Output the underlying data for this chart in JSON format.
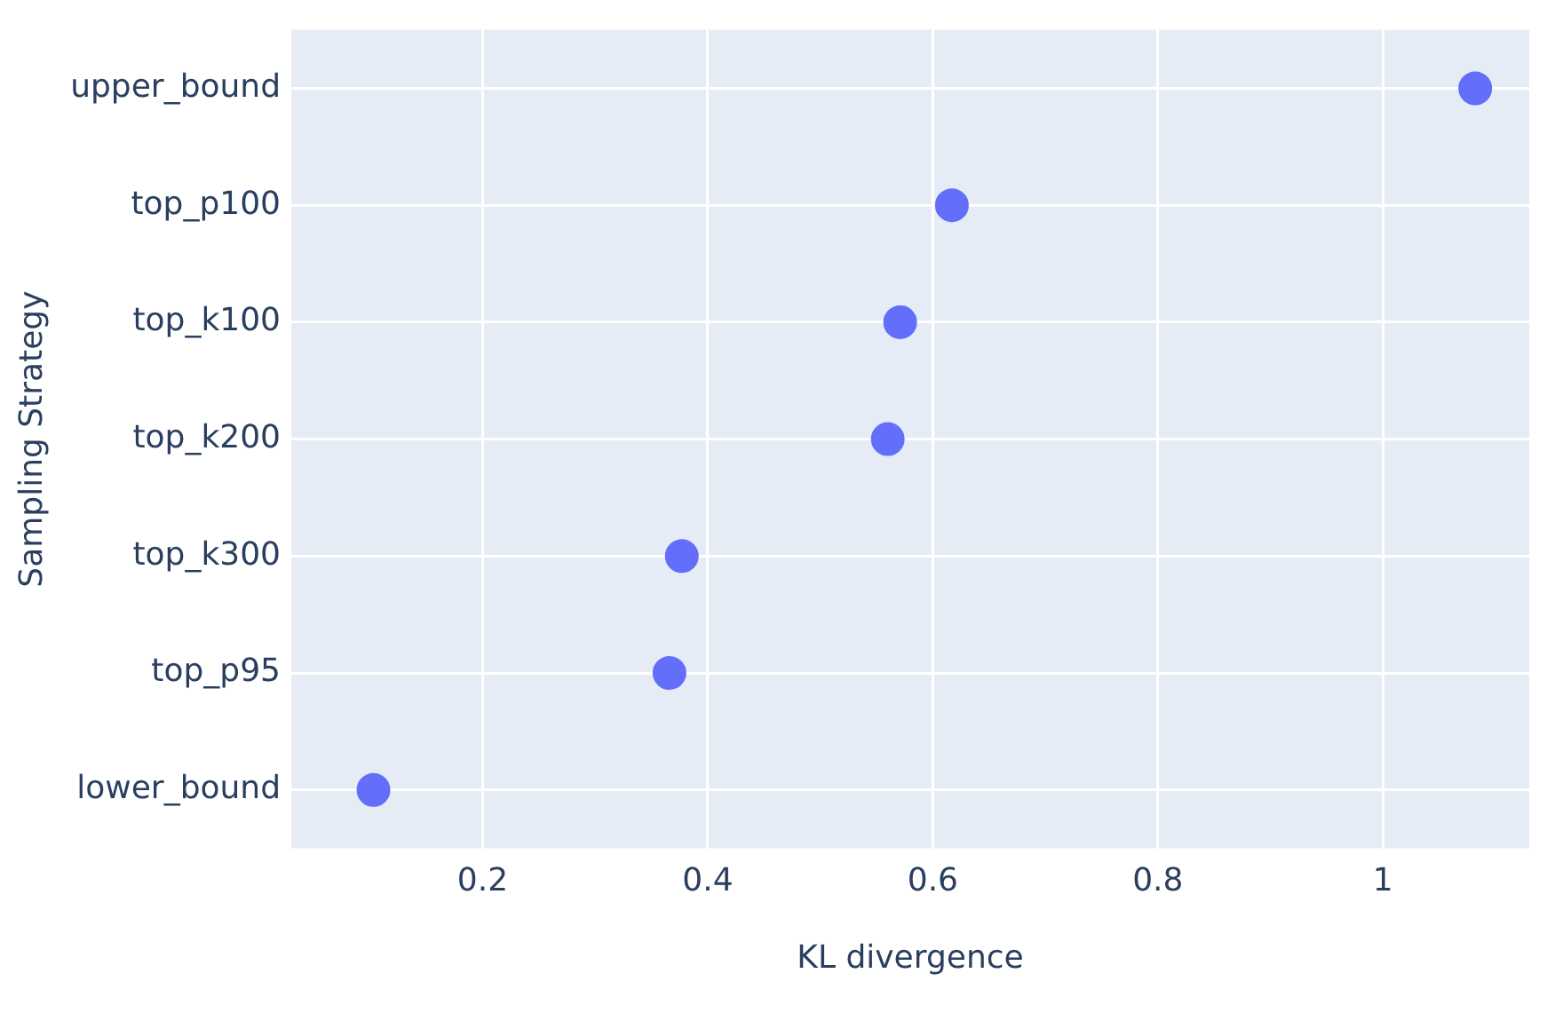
{
  "chart_data": {
    "type": "scatter",
    "orientation": "horizontal",
    "xlabel": "KL divergence",
    "ylabel": "Sampling Strategy",
    "categories": [
      "upper_bound",
      "top_p100",
      "top_k100",
      "top_k200",
      "top_k300",
      "top_p95",
      "lower_bound"
    ],
    "values": [
      1.082,
      0.617,
      0.571,
      0.56,
      0.377,
      0.366,
      0.103
    ],
    "color": "#636efa",
    "marker": "circle",
    "xlim": [
      0.03,
      1.13
    ],
    "xticks": [
      0.2,
      0.4,
      0.6,
      0.8,
      1
    ],
    "grid": true,
    "legend": false
  }
}
